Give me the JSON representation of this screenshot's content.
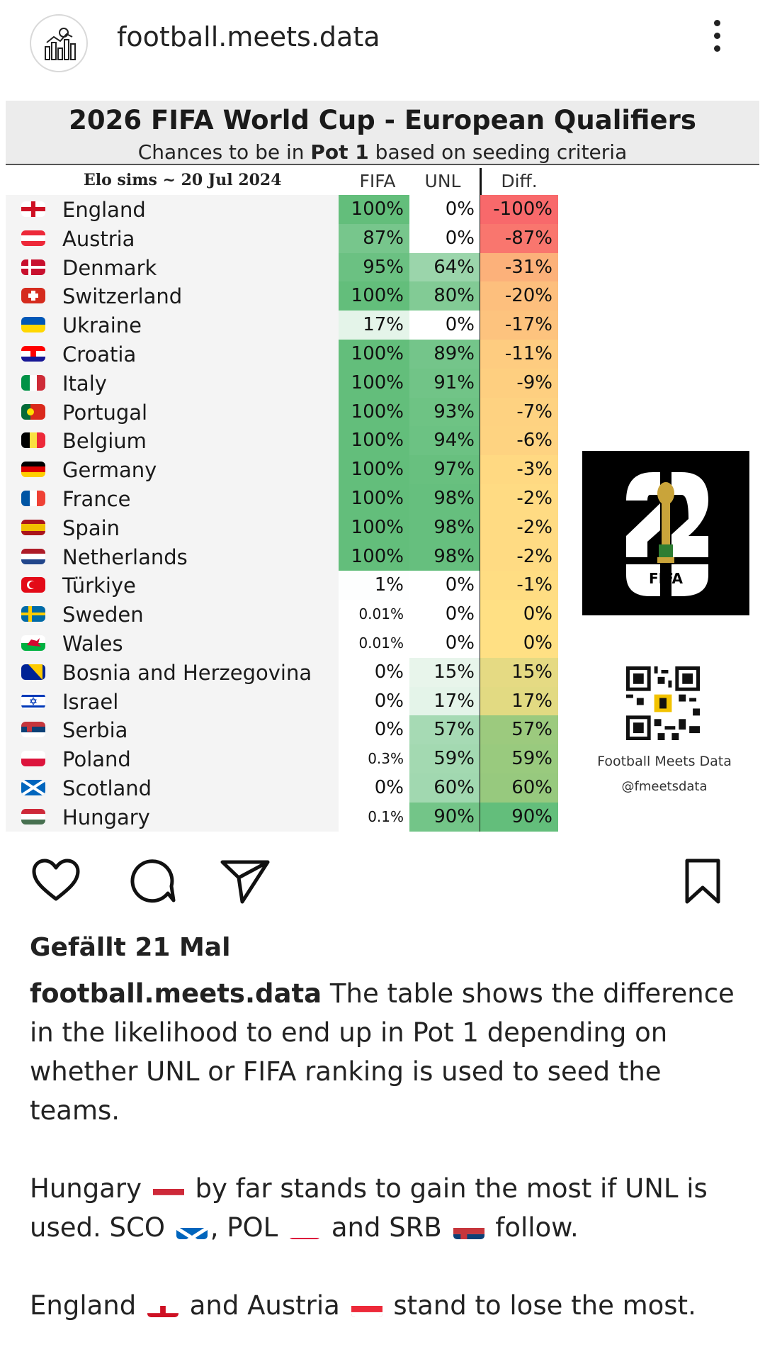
{
  "header": {
    "username": "football.meets.data"
  },
  "table": {
    "title": "2026 FIFA World Cup - European Qualifiers",
    "subtitle_pre": "Chances to be in ",
    "subtitle_bold": "Pot 1",
    "subtitle_post": " based on seeding criteria",
    "elo_label": "Elo sims ~ 20 Jul 2024",
    "col_fifa": "FIFA",
    "col_unl": "UNL",
    "col_diff": "Diff.",
    "rows": [
      {
        "name": "England",
        "flag": "england",
        "fifa": "100%",
        "unl": "0%",
        "diff": "-100%",
        "f": 100,
        "u": 0,
        "d": -100
      },
      {
        "name": "Austria",
        "flag": "austria",
        "fifa": "87%",
        "unl": "0%",
        "diff": "-87%",
        "f": 87,
        "u": 0,
        "d": -87
      },
      {
        "name": "Denmark",
        "flag": "denmark",
        "fifa": "95%",
        "unl": "64%",
        "diff": "-31%",
        "f": 95,
        "u": 64,
        "d": -31
      },
      {
        "name": "Switzerland",
        "flag": "switzerland",
        "fifa": "100%",
        "unl": "80%",
        "diff": "-20%",
        "f": 100,
        "u": 80,
        "d": -20
      },
      {
        "name": "Ukraine",
        "flag": "ukraine",
        "fifa": "17%",
        "unl": "0%",
        "diff": "-17%",
        "f": 17,
        "u": 0,
        "d": -17
      },
      {
        "name": "Croatia",
        "flag": "croatia",
        "fifa": "100%",
        "unl": "89%",
        "diff": "-11%",
        "f": 100,
        "u": 89,
        "d": -11
      },
      {
        "name": "Italy",
        "flag": "italy",
        "fifa": "100%",
        "unl": "91%",
        "diff": "-9%",
        "f": 100,
        "u": 91,
        "d": -9
      },
      {
        "name": "Portugal",
        "flag": "portugal",
        "fifa": "100%",
        "unl": "93%",
        "diff": "-7%",
        "f": 100,
        "u": 93,
        "d": -7
      },
      {
        "name": "Belgium",
        "flag": "belgium",
        "fifa": "100%",
        "unl": "94%",
        "diff": "-6%",
        "f": 100,
        "u": 94,
        "d": -6
      },
      {
        "name": "Germany",
        "flag": "germany",
        "fifa": "100%",
        "unl": "97%",
        "diff": "-3%",
        "f": 100,
        "u": 97,
        "d": -3
      },
      {
        "name": "France",
        "flag": "france",
        "fifa": "100%",
        "unl": "98%",
        "diff": "-2%",
        "f": 100,
        "u": 98,
        "d": -2
      },
      {
        "name": "Spain",
        "flag": "spain",
        "fifa": "100%",
        "unl": "98%",
        "diff": "-2%",
        "f": 100,
        "u": 98,
        "d": -2
      },
      {
        "name": "Netherlands",
        "flag": "netherlands",
        "fifa": "100%",
        "unl": "98%",
        "diff": "-2%",
        "f": 100,
        "u": 98,
        "d": -2
      },
      {
        "name": "Türkiye",
        "flag": "turkiye",
        "fifa": "1%",
        "unl": "0%",
        "diff": "-1%",
        "f": 1,
        "u": 0,
        "d": -1
      },
      {
        "name": "Sweden",
        "flag": "sweden",
        "fifa": "0.01%",
        "unl": "0%",
        "diff": "0%",
        "f": 0,
        "u": 0,
        "d": 0
      },
      {
        "name": "Wales",
        "flag": "wales",
        "fifa": "0.01%",
        "unl": "0%",
        "diff": "0%",
        "f": 0,
        "u": 0,
        "d": 0
      },
      {
        "name": "Bosnia and Herzegovina",
        "flag": "bosnia",
        "fifa": "0%",
        "unl": "15%",
        "diff": "15%",
        "f": 0,
        "u": 15,
        "d": 15
      },
      {
        "name": "Israel",
        "flag": "israel",
        "fifa": "0%",
        "unl": "17%",
        "diff": "17%",
        "f": 0,
        "u": 17,
        "d": 17
      },
      {
        "name": "Serbia",
        "flag": "serbia",
        "fifa": "0%",
        "unl": "57%",
        "diff": "57%",
        "f": 0,
        "u": 57,
        "d": 57
      },
      {
        "name": "Poland",
        "flag": "poland",
        "fifa": "0.3%",
        "unl": "59%",
        "diff": "59%",
        "f": 0,
        "u": 59,
        "d": 59
      },
      {
        "name": "Scotland",
        "flag": "scotland",
        "fifa": "0%",
        "unl": "60%",
        "diff": "60%",
        "f": 0,
        "u": 60,
        "d": 60
      },
      {
        "name": "Hungary",
        "flag": "hungary",
        "fifa": "0.1%",
        "unl": "90%",
        "diff": "90%",
        "f": 0,
        "u": 90,
        "d": 90
      }
    ]
  },
  "branding": {
    "fifa_logo_text": "FIFA",
    "logo_number": "26",
    "name": "Football Meets Data",
    "handle": "@fmeetsdata"
  },
  "post": {
    "likes": "Gefällt 21 Mal",
    "caption_user": "football.meets.data",
    "caption_p1": " The table shows the difference in the likelihood to end up in Pot 1 depending on whether UNL or FIFA ranking is used to seed the teams.",
    "p2_a": "Hungary ",
    "p2_b": " by far stands to gain the most if UNL is used. SCO ",
    "p2_c": ", POL ",
    "p2_d": " and SRB ",
    "p2_e": " follow.",
    "p3_a": "England ",
    "p3_b": " and Austria ",
    "p3_c": " stand to lose the most."
  },
  "colors": {
    "green_strong": "#63be7b",
    "diff_red": "#f8696b",
    "diff_yellow": "#ffe084",
    "name_bg": "#f4f4f4"
  }
}
